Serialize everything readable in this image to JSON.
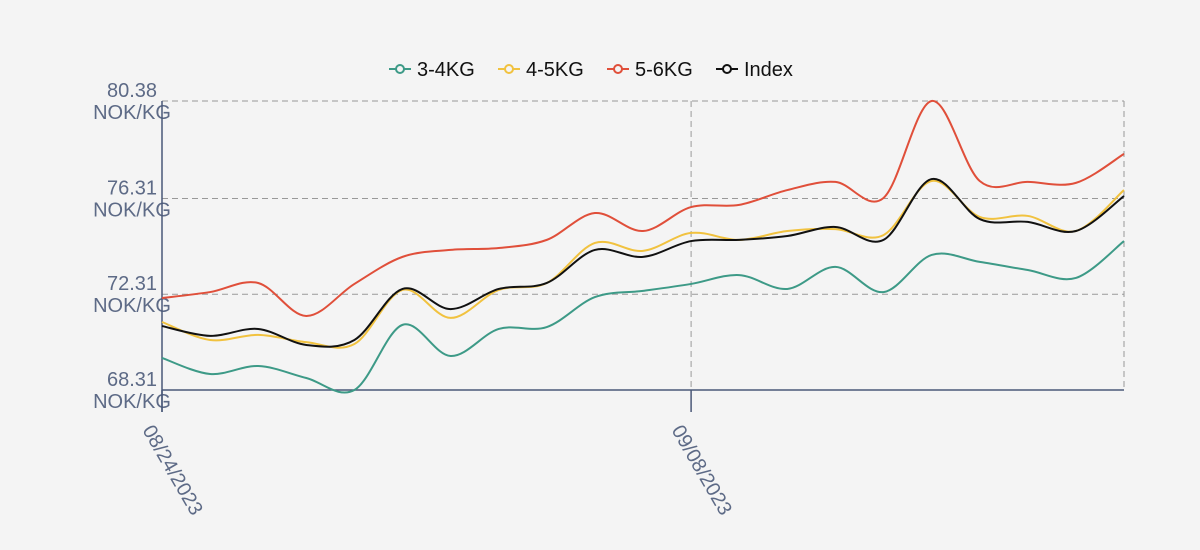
{
  "chart_data": {
    "type": "line",
    "categories": [
      "08/24/2023",
      null,
      null,
      null,
      null,
      null,
      null,
      null,
      null,
      null,
      null,
      "09/08/2023",
      null,
      null,
      null,
      null,
      null,
      null,
      null,
      null,
      null
    ],
    "series": [
      {
        "name": "3-4KG",
        "color": "#3d9a87",
        "values": [
          69.65,
          68.98,
          69.31,
          68.81,
          68.31,
          71.03,
          69.73,
          70.86,
          70.94,
          72.19,
          72.45,
          72.74,
          73.11,
          72.53,
          73.45,
          72.4,
          73.95,
          73.66,
          73.32,
          72.99,
          74.53
        ]
      },
      {
        "name": "4-5KG",
        "color": "#f1c23f",
        "values": [
          71.15,
          70.4,
          70.61,
          70.31,
          70.23,
          72.49,
          71.32,
          72.49,
          72.78,
          74.45,
          74.12,
          74.87,
          74.58,
          74.95,
          75.03,
          74.78,
          77.04,
          75.54,
          75.58,
          74.95,
          76.66
        ]
      },
      {
        "name": "5-6KG",
        "color": "#e04f3a",
        "values": [
          72.15,
          72.4,
          72.78,
          71.4,
          72.74,
          73.87,
          74.16,
          74.24,
          74.58,
          75.7,
          74.95,
          75.95,
          76.04,
          76.66,
          77.0,
          76.33,
          80.38,
          77.04,
          77.0,
          76.96,
          78.17
        ]
      },
      {
        "name": "Index",
        "color": "#111111",
        "values": [
          70.98,
          70.57,
          70.86,
          70.19,
          70.4,
          72.53,
          71.69,
          72.53,
          72.78,
          74.16,
          73.87,
          74.53,
          74.58,
          74.74,
          75.12,
          74.58,
          77.12,
          75.45,
          75.33,
          74.95,
          76.41
        ]
      }
    ],
    "ylim": [
      68.31,
      80.38
    ],
    "yticks": [
      {
        "value": 68.31,
        "label": "68.31 NOK/KG"
      },
      {
        "value": 72.31,
        "label": "72.31 NOK/KG"
      },
      {
        "value": 76.31,
        "label": "76.31 NOK/KG"
      },
      {
        "value": 80.38,
        "label": "80.38 NOK/KG"
      }
    ],
    "grid": true,
    "legend": "top"
  }
}
